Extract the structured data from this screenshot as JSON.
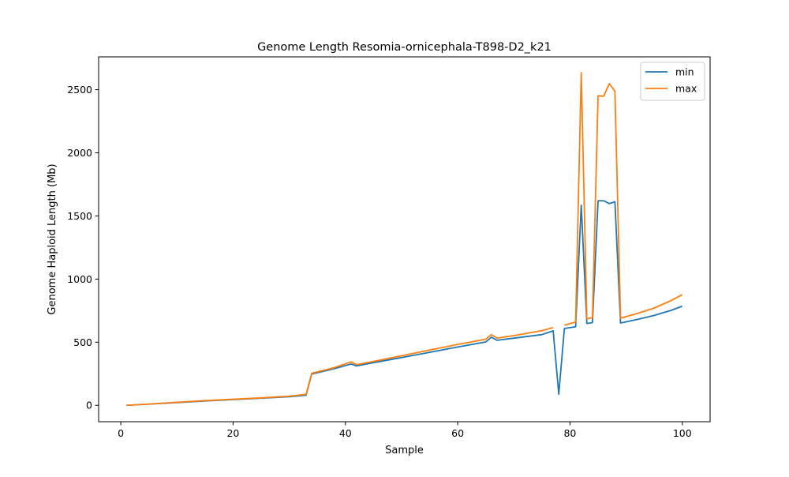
{
  "chart_data": {
    "type": "line",
    "title": "Genome Length Resomia-ornicephala-T898-D2_k21",
    "xlabel": "Sample",
    "ylabel": "Genome Haploid Length (Mb)",
    "xlim": [
      -3.95,
      104.95
    ],
    "ylim": [
      -130,
      2760
    ],
    "xticks": [
      0,
      20,
      40,
      60,
      80,
      100
    ],
    "yticks": [
      0,
      500,
      1000,
      1500,
      2000,
      2500
    ],
    "grid": false,
    "legend": "top-right",
    "series": [
      {
        "name": "min",
        "color": "#1f77b4",
        "points": [
          [
            1,
            0
          ],
          [
            5,
            9
          ],
          [
            10,
            22
          ],
          [
            15,
            34
          ],
          [
            20,
            45
          ],
          [
            25,
            56
          ],
          [
            30,
            68
          ],
          [
            33,
            80
          ],
          [
            34,
            248
          ],
          [
            38,
            290
          ],
          [
            41,
            327
          ],
          [
            42,
            312
          ],
          [
            45,
            338
          ],
          [
            50,
            378
          ],
          [
            55,
            420
          ],
          [
            60,
            462
          ],
          [
            65,
            502
          ],
          [
            66,
            540
          ],
          [
            67,
            515
          ],
          [
            70,
            532
          ],
          [
            75,
            560
          ],
          [
            77,
            590
          ],
          [
            78,
            88
          ],
          [
            79,
            608
          ],
          [
            81,
            622
          ],
          [
            82,
            1585
          ],
          [
            83,
            648
          ],
          [
            84,
            655
          ],
          [
            85,
            1620
          ],
          [
            86,
            1620
          ],
          [
            87,
            1598
          ],
          [
            88,
            1612
          ],
          [
            89,
            652
          ],
          [
            92,
            680
          ],
          [
            95,
            712
          ],
          [
            98,
            752
          ],
          [
            100,
            785
          ]
        ]
      },
      {
        "name": "max",
        "color": "#ff7f0e",
        "points": [
          [
            1,
            0
          ],
          [
            5,
            10
          ],
          [
            10,
            24
          ],
          [
            15,
            37
          ],
          [
            20,
            48
          ],
          [
            25,
            59
          ],
          [
            30,
            72
          ],
          [
            33,
            87
          ],
          [
            34,
            254
          ],
          [
            38,
            298
          ],
          [
            41,
            344
          ],
          [
            42,
            322
          ],
          [
            45,
            348
          ],
          [
            50,
            392
          ],
          [
            55,
            438
          ],
          [
            60,
            482
          ],
          [
            65,
            524
          ],
          [
            66,
            560
          ],
          [
            67,
            532
          ],
          [
            70,
            552
          ],
          [
            75,
            592
          ],
          [
            77,
            615
          ],
          [
            79,
            635
          ],
          [
            81,
            660
          ],
          [
            82,
            2635
          ],
          [
            83,
            685
          ],
          [
            84,
            695
          ],
          [
            85,
            2452
          ],
          [
            86,
            2448
          ],
          [
            87,
            2548
          ],
          [
            88,
            2488
          ],
          [
            89,
            690
          ],
          [
            92,
            728
          ],
          [
            95,
            770
          ],
          [
            98,
            830
          ],
          [
            100,
            877
          ]
        ]
      }
    ]
  }
}
